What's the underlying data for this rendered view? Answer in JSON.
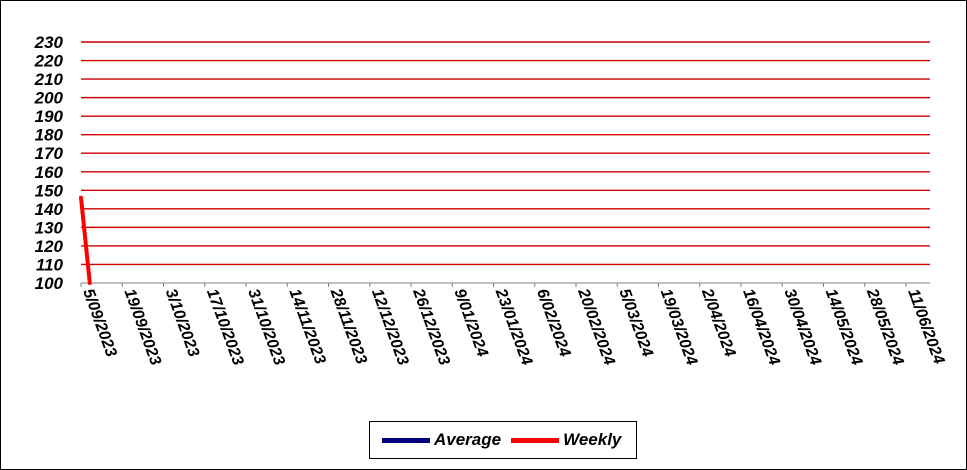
{
  "chart_data": {
    "type": "line",
    "title": "",
    "xlabel": "",
    "ylabel": "",
    "ylim": [
      100,
      230
    ],
    "yticks": [
      "230",
      "220",
      "210",
      "200",
      "190",
      "180",
      "170",
      "160",
      "150",
      "140",
      "130",
      "120",
      "110",
      "100"
    ],
    "xticks": [
      "5/09/2023",
      "19/09/2023",
      "3/10/2023",
      "17/10/2023",
      "31/10/2023",
      "14/11/2023",
      "28/11/2023",
      "12/12/2023",
      "26/12/2023",
      "9/01/2024",
      "23/01/2024",
      "6/02/2024",
      "20/02/2024",
      "5/03/2024",
      "19/03/2024",
      "2/04/2024",
      "16/04/2024",
      "30/04/2024",
      "14/05/2024",
      "28/05/2024",
      "11/06/2024"
    ],
    "grid": true,
    "legend_position": "bottom",
    "series": [
      {
        "name": "Average",
        "color": "#000080",
        "points": []
      },
      {
        "name": "Weekly",
        "color": "#ff0000",
        "points": [
          {
            "x": "5/09/2023",
            "y": 146
          },
          {
            "x": "8/09/2023",
            "y": 100
          }
        ]
      }
    ],
    "gridline_color": "#cc0000"
  }
}
